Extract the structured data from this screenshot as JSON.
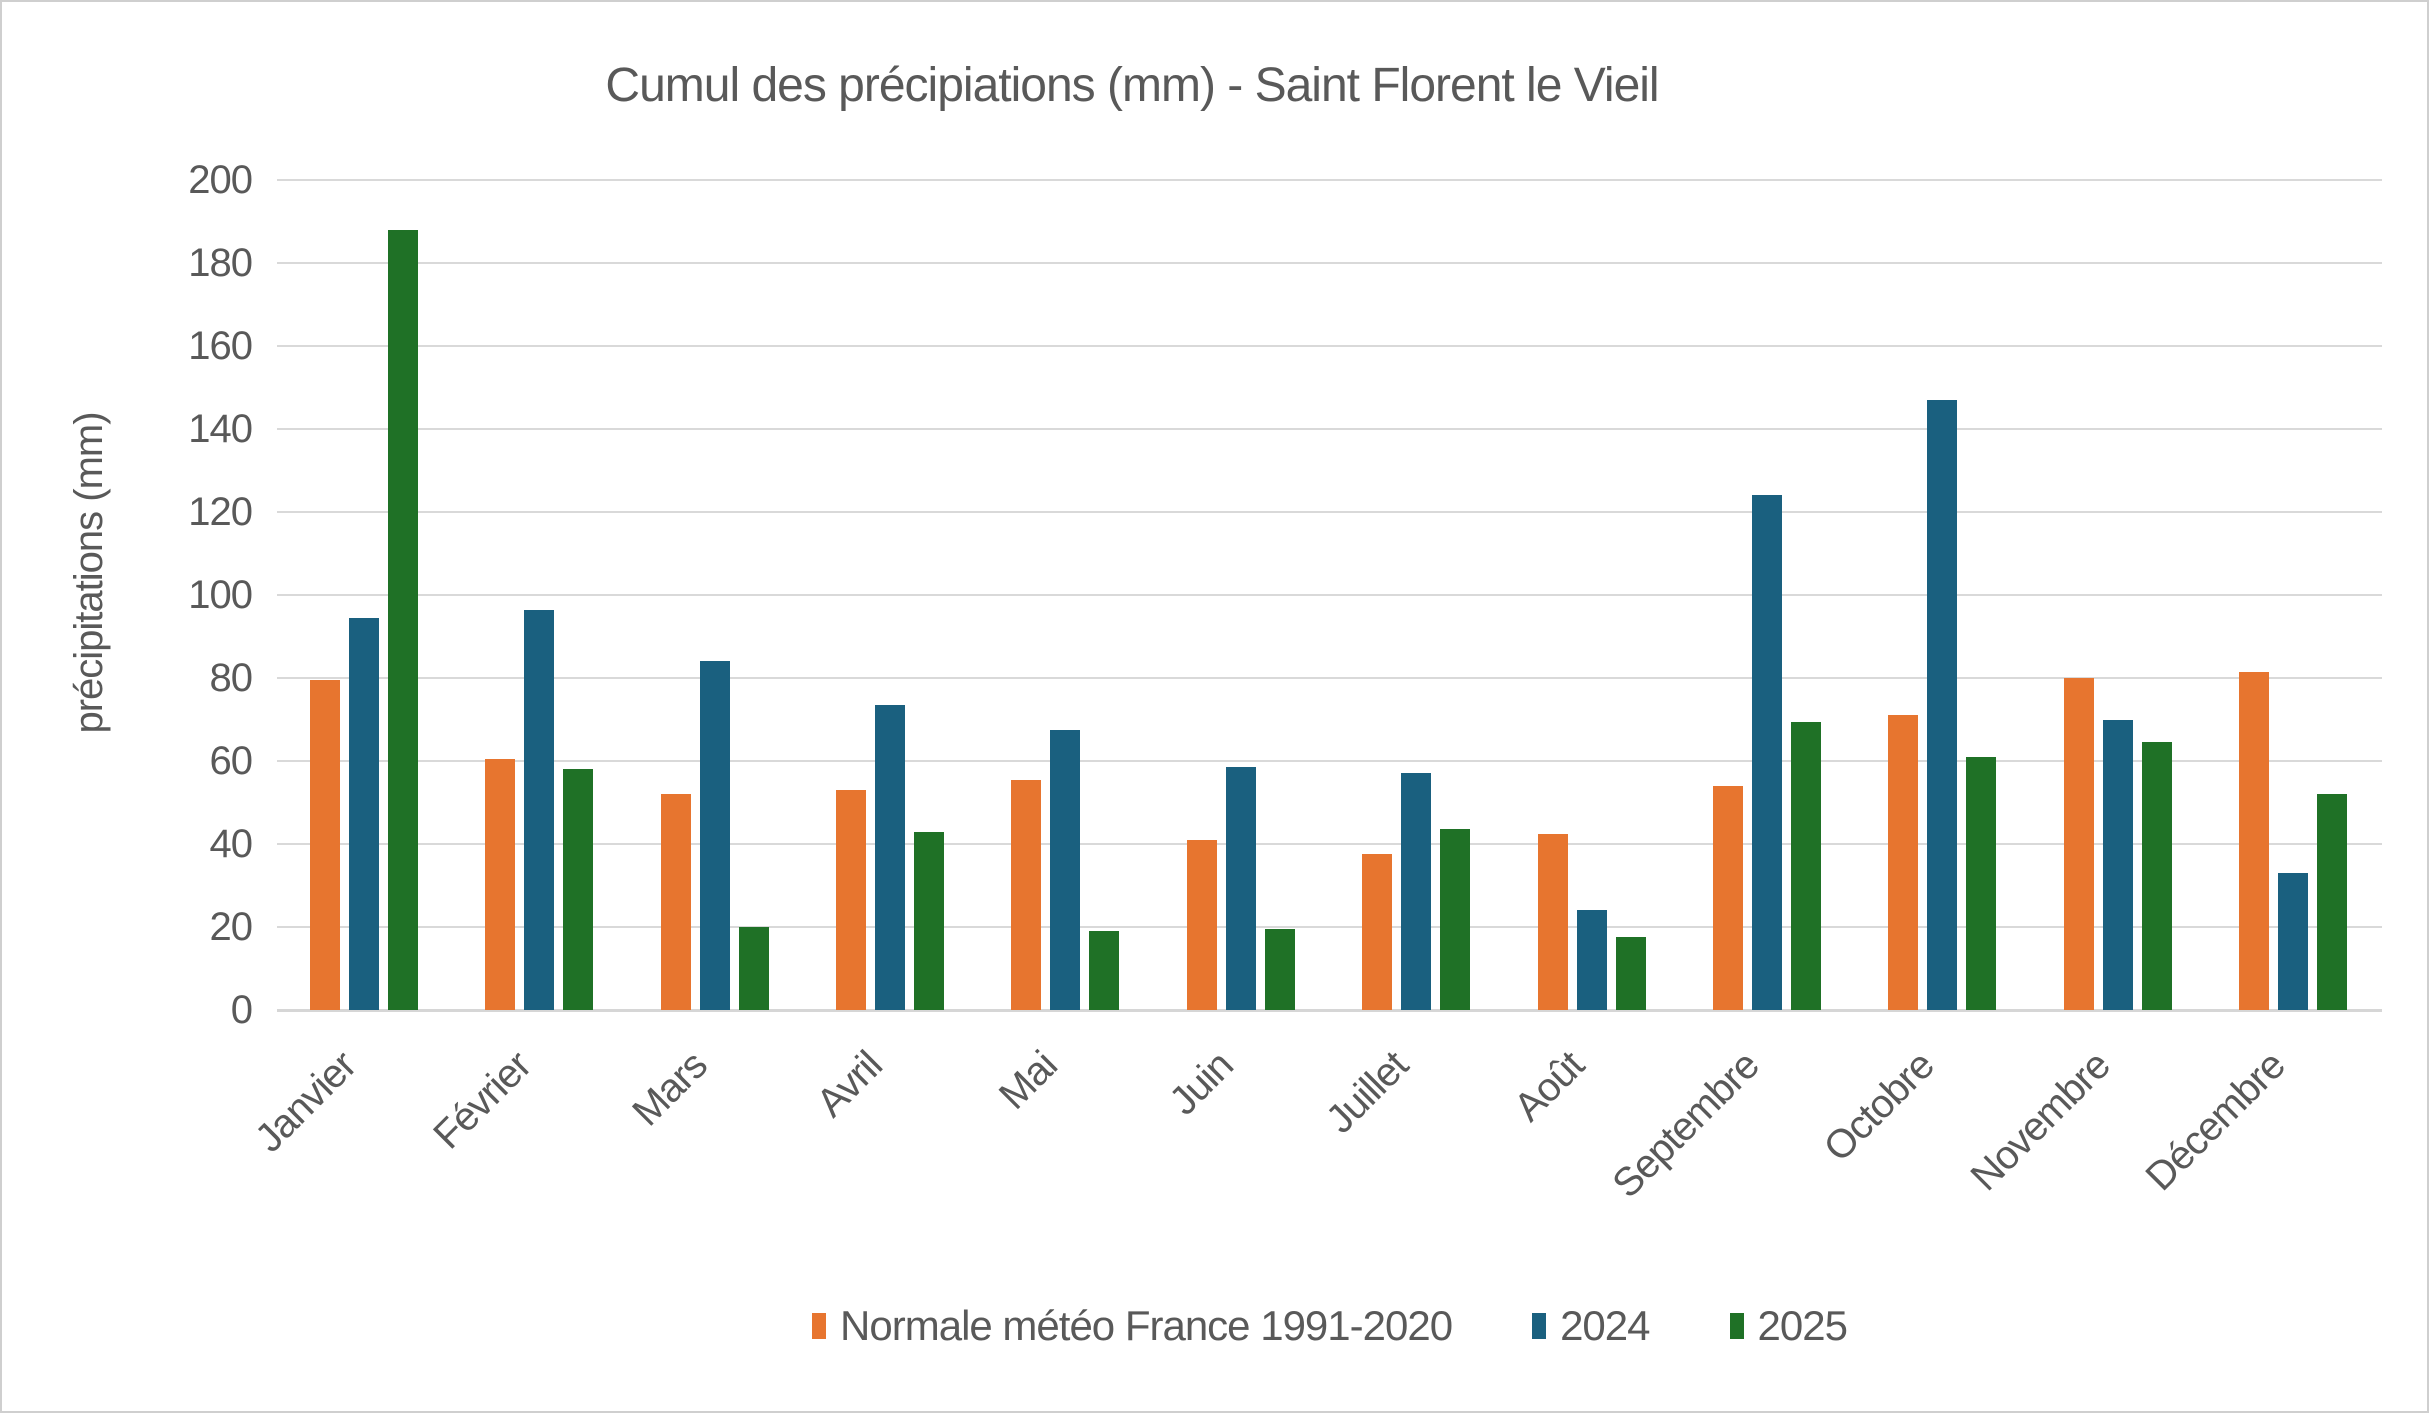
{
  "title": "Cumul des précipiations (mm) - Saint Florent le Vieil",
  "chart_data": {
    "type": "bar",
    "title": "Cumul des précipiations (mm) - Saint Florent le Vieil",
    "xlabel": "",
    "ylabel": "précipitations (mm)",
    "ylim": [
      0,
      200
    ],
    "ytick_step": 20,
    "yticks": [
      0,
      20,
      40,
      60,
      80,
      100,
      120,
      140,
      160,
      180,
      200
    ],
    "grid": true,
    "legend_position": "bottom",
    "categories": [
      "Janvier",
      "Février",
      "Mars",
      "Avril",
      "Mai",
      "Juin",
      "Juillet",
      "Août",
      "Septembre",
      "Octobre",
      "Novembre",
      "Décembre"
    ],
    "series": [
      {
        "name": "Normale météo France 1991-2020",
        "color": "#E7752F",
        "values": [
          79.5,
          60.5,
          52,
          53,
          55.5,
          41,
          37.5,
          42.5,
          54,
          71,
          80,
          81.5
        ]
      },
      {
        "name": "2024",
        "color": "#1A607F",
        "values": [
          94.5,
          96.5,
          84,
          73.5,
          67.5,
          58.5,
          57,
          24,
          124,
          147,
          70,
          33
        ]
      },
      {
        "name": "2025",
        "color": "#1F7126",
        "values": [
          188,
          58,
          20,
          43,
          19,
          19.5,
          43.5,
          17.5,
          69.5,
          61,
          64.5,
          52
        ]
      }
    ]
  },
  "colors": {
    "series_orange": "#E7752F",
    "series_blue": "#1A607F",
    "series_green": "#1F7126"
  }
}
